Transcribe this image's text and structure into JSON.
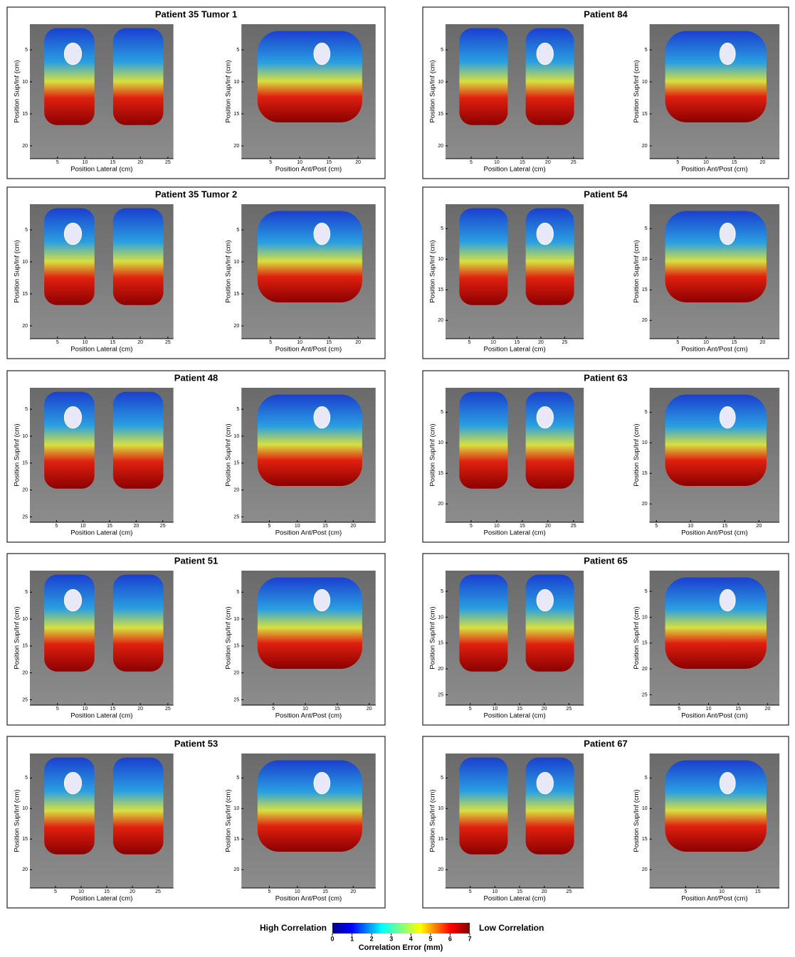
{
  "panels": [
    {
      "title": "Patient 35 Tumor 1",
      "images": [
        {
          "xlabel": "Position Lateral (cm)",
          "ylabel": "Position Sup/Inf (cm)",
          "xlim": [
            0,
            26
          ],
          "ylim": [
            1,
            22
          ],
          "xticks": [
            5,
            10,
            15,
            20,
            25
          ],
          "yticks": [
            5,
            10,
            15,
            20
          ]
        },
        {
          "xlabel": "Position Ant/Post (cm)",
          "ylabel": "Position Sup/Inf (cm)",
          "xlim": [
            0,
            23
          ],
          "ylim": [
            1,
            22
          ],
          "xticks": [
            5,
            10,
            15,
            20
          ],
          "yticks": [
            5,
            10,
            15,
            20
          ]
        }
      ]
    },
    {
      "title": "Patient 84",
      "images": [
        {
          "xlabel": "Position Lateral (cm)",
          "ylabel": "Position Sup/Inf (cm)",
          "xlim": [
            0,
            27
          ],
          "ylim": [
            1,
            22
          ],
          "xticks": [
            5,
            10,
            15,
            20,
            25
          ],
          "yticks": [
            5,
            10,
            15,
            20
          ]
        },
        {
          "xlabel": "Position Ant/Post (cm)",
          "ylabel": "Position Sup/Inf (cm)",
          "xlim": [
            0,
            23
          ],
          "ylim": [
            1,
            22
          ],
          "xticks": [
            5,
            10,
            15,
            20
          ],
          "yticks": [
            5,
            10,
            15,
            20
          ]
        }
      ]
    },
    {
      "title": "Patient 35 Tumor 2",
      "images": [
        {
          "xlabel": "Position Lateral (cm)",
          "ylabel": "Position Sup/Inf (cm)",
          "xlim": [
            0,
            26
          ],
          "ylim": [
            1,
            22
          ],
          "xticks": [
            5,
            10,
            15,
            20,
            25
          ],
          "yticks": [
            5,
            10,
            15,
            20
          ]
        },
        {
          "xlabel": "Position Ant/Post (cm)",
          "ylabel": "Position Sup/Inf (cm)",
          "xlim": [
            0,
            23
          ],
          "ylim": [
            1,
            22
          ],
          "xticks": [
            5,
            10,
            15,
            20
          ],
          "yticks": [
            5,
            10,
            15,
            20
          ]
        }
      ]
    },
    {
      "title": "Patient 54",
      "images": [
        {
          "xlabel": "Position Lateral (cm)",
          "ylabel": "Position Sup/Inf (cm)",
          "xlim": [
            0,
            29
          ],
          "ylim": [
            1,
            23
          ],
          "xticks": [
            5,
            10,
            15,
            20,
            25
          ],
          "yticks": [
            5,
            10,
            15,
            20
          ]
        },
        {
          "xlabel": "Position Ant/Post (cm)",
          "ylabel": "Position Sup/Inf (cm)",
          "xlim": [
            0,
            23
          ],
          "ylim": [
            1,
            23
          ],
          "xticks": [
            5,
            10,
            15,
            20
          ],
          "yticks": [
            5,
            10,
            15,
            20
          ]
        }
      ]
    },
    {
      "title": "Patient 48",
      "images": [
        {
          "xlabel": "Position Lateral (cm)",
          "ylabel": "Position Sup/Inf (cm)",
          "xlim": [
            0,
            27
          ],
          "ylim": [
            1,
            26
          ],
          "xticks": [
            5,
            10,
            15,
            20,
            25
          ],
          "yticks": [
            5,
            10,
            15,
            20,
            25
          ]
        },
        {
          "xlabel": "Position Ant/Post (cm)",
          "ylabel": "Position Sup/Inf (cm)",
          "xlim": [
            0,
            24
          ],
          "ylim": [
            1,
            26
          ],
          "xticks": [
            5,
            10,
            15,
            20
          ],
          "yticks": [
            5,
            10,
            15,
            20,
            25
          ]
        }
      ]
    },
    {
      "title": "Patient 63",
      "images": [
        {
          "xlabel": "Position Lateral (cm)",
          "ylabel": "Position Sup/Inf (cm)",
          "xlim": [
            0,
            27
          ],
          "ylim": [
            1,
            23
          ],
          "xticks": [
            5,
            10,
            15,
            20,
            25
          ],
          "yticks": [
            5,
            10,
            15,
            20
          ]
        },
        {
          "xlabel": "Position Ant/Post (cm)",
          "ylabel": "Position Sup/Inf (cm)",
          "xlim": [
            4,
            23
          ],
          "ylim": [
            1,
            23
          ],
          "xticks": [
            5,
            10,
            15,
            20
          ],
          "yticks": [
            5,
            10,
            15,
            20
          ]
        }
      ]
    },
    {
      "title": "Patient 51",
      "images": [
        {
          "xlabel": "Position Lateral (cm)",
          "ylabel": "Position Sup/Inf (cm)",
          "xlim": [
            0,
            26
          ],
          "ylim": [
            1,
            26
          ],
          "xticks": [
            5,
            10,
            15,
            20,
            25
          ],
          "yticks": [
            5,
            10,
            15,
            20,
            25
          ]
        },
        {
          "xlabel": "Position Ant/Post (cm)",
          "ylabel": "Position Sup/Inf (cm)",
          "xlim": [
            0,
            21
          ],
          "ylim": [
            1,
            26
          ],
          "xticks": [
            5,
            10,
            15,
            20
          ],
          "yticks": [
            5,
            10,
            15,
            20,
            25
          ]
        }
      ]
    },
    {
      "title": "Patient 65",
      "images": [
        {
          "xlabel": "Position Lateral (cm)",
          "ylabel": "Position Sup/Inf (cm)",
          "xlim": [
            0,
            28
          ],
          "ylim": [
            1,
            27
          ],
          "xticks": [
            5,
            10,
            15,
            20,
            25
          ],
          "yticks": [
            5,
            10,
            15,
            20,
            25
          ]
        },
        {
          "xlabel": "Position Ant/Post (cm)",
          "ylabel": "Position Sup/Inf (cm)",
          "xlim": [
            0,
            22
          ],
          "ylim": [
            1,
            27
          ],
          "xticks": [
            5,
            10,
            15,
            20
          ],
          "yticks": [
            5,
            10,
            15,
            20,
            25
          ]
        }
      ]
    },
    {
      "title": "Patient 53",
      "images": [
        {
          "xlabel": "Position Lateral (cm)",
          "ylabel": "Position Sup/Inf (cm)",
          "xlim": [
            0,
            28
          ],
          "ylim": [
            1,
            23
          ],
          "xticks": [
            5,
            10,
            15,
            20,
            25
          ],
          "yticks": [
            5,
            10,
            15,
            20
          ]
        },
        {
          "xlabel": "Position Ant/Post (cm)",
          "ylabel": "Position Sup/Inf (cm)",
          "xlim": [
            0,
            24
          ],
          "ylim": [
            1,
            23
          ],
          "xticks": [
            5,
            10,
            15,
            20
          ],
          "yticks": [
            5,
            10,
            15,
            20
          ]
        }
      ]
    },
    {
      "title": "Patient 67",
      "images": [
        {
          "xlabel": "Position Lateral (cm)",
          "ylabel": "Position Sup/Inf (cm)",
          "xlim": [
            0,
            28
          ],
          "ylim": [
            1,
            23
          ],
          "xticks": [
            5,
            10,
            15,
            20,
            25
          ],
          "yticks": [
            5,
            10,
            15,
            20
          ]
        },
        {
          "xlabel": "Position Ant/Post (cm)",
          "ylabel": "Position Sup/Inf (cm)",
          "xlim": [
            0,
            18
          ],
          "ylim": [
            1,
            23
          ],
          "xticks": [
            5,
            10,
            15
          ],
          "yticks": [
            5,
            10,
            15,
            20
          ]
        }
      ]
    }
  ],
  "colorbar": {
    "left_label": "High Correlation",
    "right_label": "Low Correlation",
    "label": "Correlation Error (mm)",
    "lim": [
      0,
      7
    ],
    "ticks": [
      0,
      1,
      2,
      3,
      4,
      5,
      6,
      7
    ]
  }
}
